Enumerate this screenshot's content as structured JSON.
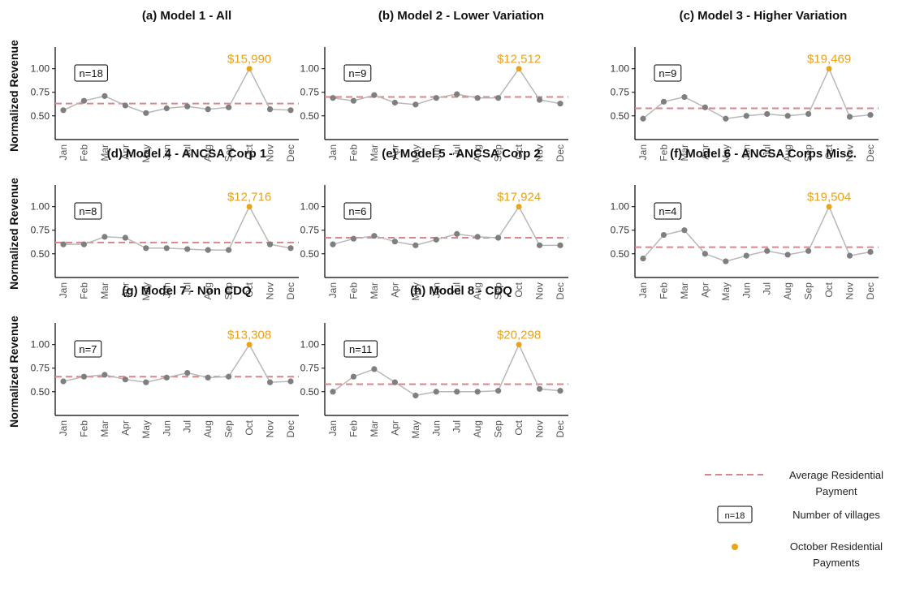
{
  "y_axis_title": "Normalized Revenue",
  "colors": {
    "line": "#b8b8b8",
    "point": "#7f7f7f",
    "average": "#d9868a",
    "october": "#E8A317"
  },
  "legend": {
    "average_label_line1": "Average Residential",
    "average_label_line2": "Payment",
    "nbox_sample": "n=18",
    "nbox_label": "Number of villages",
    "october_label_line1": "October Residential",
    "october_label_line2": "Payments"
  },
  "chart_data": [
    {
      "type": "line",
      "title": "(a) Model 1 - All",
      "categories": [
        "Jan",
        "Feb",
        "Mar",
        "Apr",
        "May",
        "Jun",
        "Jul",
        "Aug",
        "Sep",
        "Oct",
        "Nov",
        "Dec"
      ],
      "values": [
        0.56,
        0.66,
        0.71,
        0.61,
        0.53,
        0.58,
        0.6,
        0.57,
        0.59,
        1.0,
        0.57,
        0.56
      ],
      "average": 0.63,
      "n_label": "n=18",
      "oct_label": "$15,990",
      "yticks": [
        "0.50",
        "0.75",
        "1.00"
      ],
      "ylim": [
        0.3,
        1.23
      ]
    },
    {
      "type": "line",
      "title": "(b) Model 2 - Lower Variation",
      "categories": [
        "Jan",
        "Feb",
        "Mar",
        "Apr",
        "May",
        "Jun",
        "Jul",
        "Aug",
        "Sep",
        "Oct",
        "Nov",
        "Dec"
      ],
      "values": [
        0.69,
        0.66,
        0.72,
        0.64,
        0.62,
        0.69,
        0.73,
        0.69,
        0.69,
        1.0,
        0.67,
        0.63
      ],
      "average": 0.7,
      "n_label": "n=9",
      "oct_label": "$12,512",
      "yticks": [
        "0.50",
        "0.75",
        "1.00"
      ],
      "ylim": [
        0.3,
        1.23
      ]
    },
    {
      "type": "line",
      "title": "(c) Model 3 - Higher Variation",
      "categories": [
        "Jan",
        "Feb",
        "Mar",
        "Apr",
        "May",
        "Jun",
        "Jul",
        "Aug",
        "Sep",
        "Oct",
        "Nov",
        "Dec"
      ],
      "values": [
        0.47,
        0.65,
        0.7,
        0.59,
        0.47,
        0.5,
        0.52,
        0.5,
        0.52,
        1.0,
        0.49,
        0.51
      ],
      "average": 0.58,
      "n_label": "n=9",
      "oct_label": "$19,469",
      "yticks": [
        "0.50",
        "0.75",
        "1.00"
      ],
      "ylim": [
        0.3,
        1.23
      ]
    },
    {
      "type": "line",
      "title": "(d) Model 4 - ANCSA Corp 1",
      "categories": [
        "Jan",
        "Feb",
        "Mar",
        "Apr",
        "May",
        "Jun",
        "Jul",
        "Aug",
        "Sep",
        "Oct",
        "Nov",
        "Dec"
      ],
      "values": [
        0.6,
        0.6,
        0.68,
        0.67,
        0.56,
        0.56,
        0.55,
        0.54,
        0.54,
        1.0,
        0.6,
        0.56
      ],
      "average": 0.62,
      "n_label": "n=8",
      "oct_label": "$12,716",
      "yticks": [
        "0.50",
        "0.75",
        "1.00"
      ],
      "ylim": [
        0.3,
        1.23
      ]
    },
    {
      "type": "line",
      "title": "(e) Model 5 - ANCSA Corp 2",
      "categories": [
        "Jan",
        "Feb",
        "Mar",
        "Apr",
        "May",
        "Jun",
        "Jul",
        "Aug",
        "Sep",
        "Oct",
        "Nov",
        "Dec"
      ],
      "values": [
        0.6,
        0.66,
        0.69,
        0.63,
        0.59,
        0.65,
        0.71,
        0.68,
        0.67,
        1.0,
        0.59,
        0.59
      ],
      "average": 0.67,
      "n_label": "n=6",
      "oct_label": "$17,924",
      "yticks": [
        "0.50",
        "0.75",
        "1.00"
      ],
      "ylim": [
        0.3,
        1.23
      ]
    },
    {
      "type": "line",
      "title": "(f) Model 6 - ANCSA Corps Misc.",
      "categories": [
        "Jan",
        "Feb",
        "Mar",
        "Apr",
        "May",
        "Jun",
        "Jul",
        "Aug",
        "Sep",
        "Oct",
        "Nov",
        "Dec"
      ],
      "values": [
        0.45,
        0.7,
        0.75,
        0.5,
        0.42,
        0.48,
        0.53,
        0.49,
        0.53,
        1.0,
        0.48,
        0.52
      ],
      "average": 0.57,
      "n_label": "n=4",
      "oct_label": "$19,504",
      "yticks": [
        "0.50",
        "0.75",
        "1.00"
      ],
      "ylim": [
        0.3,
        1.23
      ]
    },
    {
      "type": "line",
      "title": "(g) Model 7 - Non CDQ",
      "categories": [
        "Jan",
        "Feb",
        "Mar",
        "Apr",
        "May",
        "Jun",
        "Jul",
        "Aug",
        "Sep",
        "Oct",
        "Nov",
        "Dec"
      ],
      "values": [
        0.61,
        0.66,
        0.68,
        0.63,
        0.6,
        0.65,
        0.7,
        0.65,
        0.66,
        1.0,
        0.6,
        0.61
      ],
      "average": 0.66,
      "n_label": "n=7",
      "oct_label": "$13,308",
      "yticks": [
        "0.50",
        "0.75",
        "1.00"
      ],
      "ylim": [
        0.3,
        1.23
      ]
    },
    {
      "type": "line",
      "title": "(h) Model 8 - CDQ",
      "categories": [
        "Jan",
        "Feb",
        "Mar",
        "Apr",
        "May",
        "Jun",
        "Jul",
        "Aug",
        "Sep",
        "Oct",
        "Nov",
        "Dec"
      ],
      "values": [
        0.5,
        0.66,
        0.74,
        0.6,
        0.46,
        0.5,
        0.5,
        0.5,
        0.51,
        1.0,
        0.53,
        0.51
      ],
      "average": 0.58,
      "n_label": "n=11",
      "oct_label": "$20,298",
      "yticks": [
        "0.50",
        "0.75",
        "1.00"
      ],
      "ylim": [
        0.3,
        1.23
      ]
    }
  ]
}
